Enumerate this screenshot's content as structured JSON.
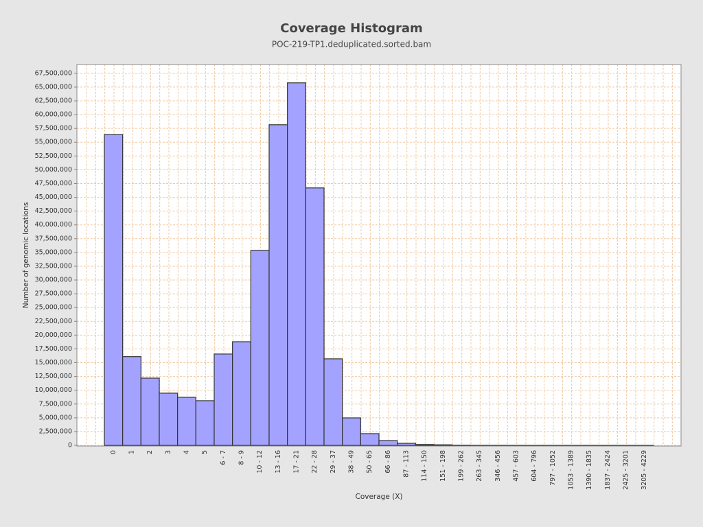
{
  "chart_data": {
    "type": "bar",
    "title": "Coverage Histogram",
    "subtitle": "POC-219-TP1.deduplicated.sorted.bam",
    "x_label": "Coverage (X)",
    "y_label": "Number of genomic locations",
    "categories": [
      "0",
      "1",
      "2",
      "3",
      "4",
      "5",
      "6 - 7",
      "8 - 9",
      "10 - 12",
      "13 - 16",
      "17 - 21",
      "22 - 28",
      "29 - 37",
      "38 - 49",
      "50 - 65",
      "66 - 86",
      "87 - 113",
      "114 - 150",
      "151 - 198",
      "199 - 262",
      "263 - 345",
      "346 - 456",
      "457 - 603",
      "604 - 796",
      "797 - 1052",
      "1053 - 1389",
      "1390 - 1835",
      "1837 - 2424",
      "2425 - 3201",
      "3205 - 4229"
    ],
    "values": [
      56400000,
      16100000,
      12200000,
      9470000,
      8720000,
      8100000,
      16570000,
      18800000,
      35380000,
      58170000,
      65770000,
      46710000,
      15700000,
      4980000,
      2120000,
      870000,
      370000,
      150000,
      100000,
      30000,
      10000,
      5000,
      2000,
      1000,
      500,
      200,
      100,
      50,
      20,
      10
    ],
    "color": "#a3a3ff",
    "edgecolor": "#333333",
    "grid": true,
    "ylim": [
      0,
      69100000
    ],
    "yticks": [
      0,
      {
        "value": 2500000,
        "label": "2,500,000"
      },
      {
        "value": 5000000,
        "label": "5,000,000"
      },
      {
        "value": 7500000,
        "label": "7,500,000"
      },
      {
        "value": 10000000,
        "label": "10,000,000"
      },
      {
        "value": 12500000,
        "label": "12,500,000"
      },
      {
        "value": 15000000,
        "label": "15,000,000"
      },
      {
        "value": 17500000,
        "label": "17,500,000"
      },
      {
        "value": 20000000,
        "label": "20,000,000"
      },
      {
        "value": 22500000,
        "label": "22,500,000"
      },
      {
        "value": 25000000,
        "label": "25,000,000"
      },
      {
        "value": 27500000,
        "label": "27,500,000"
      },
      {
        "value": 30000000,
        "label": "30,000,000"
      },
      {
        "value": 32500000,
        "label": "32,500,000"
      },
      {
        "value": 35000000,
        "label": "35,000,000"
      },
      {
        "value": 37500000,
        "label": "37,500,000"
      },
      {
        "value": 40000000,
        "label": "40,000,000"
      },
      {
        "value": 42500000,
        "label": "42,500,000"
      },
      {
        "value": 45000000,
        "label": "45,000,000"
      },
      {
        "value": 47500000,
        "label": "47,500,000"
      },
      {
        "value": 50000000,
        "label": "50,000,000"
      },
      {
        "value": 52500000,
        "label": "52,500,000"
      },
      {
        "value": 55000000,
        "label": "55,000,000"
      },
      {
        "value": 57500000,
        "label": "57,500,000"
      },
      {
        "value": 60000000,
        "label": "60,000,000"
      },
      {
        "value": 62500000,
        "label": "62,500,000"
      },
      {
        "value": 65000000,
        "label": "65,000,000"
      },
      {
        "value": 67500000,
        "label": "67,500,000"
      }
    ]
  }
}
